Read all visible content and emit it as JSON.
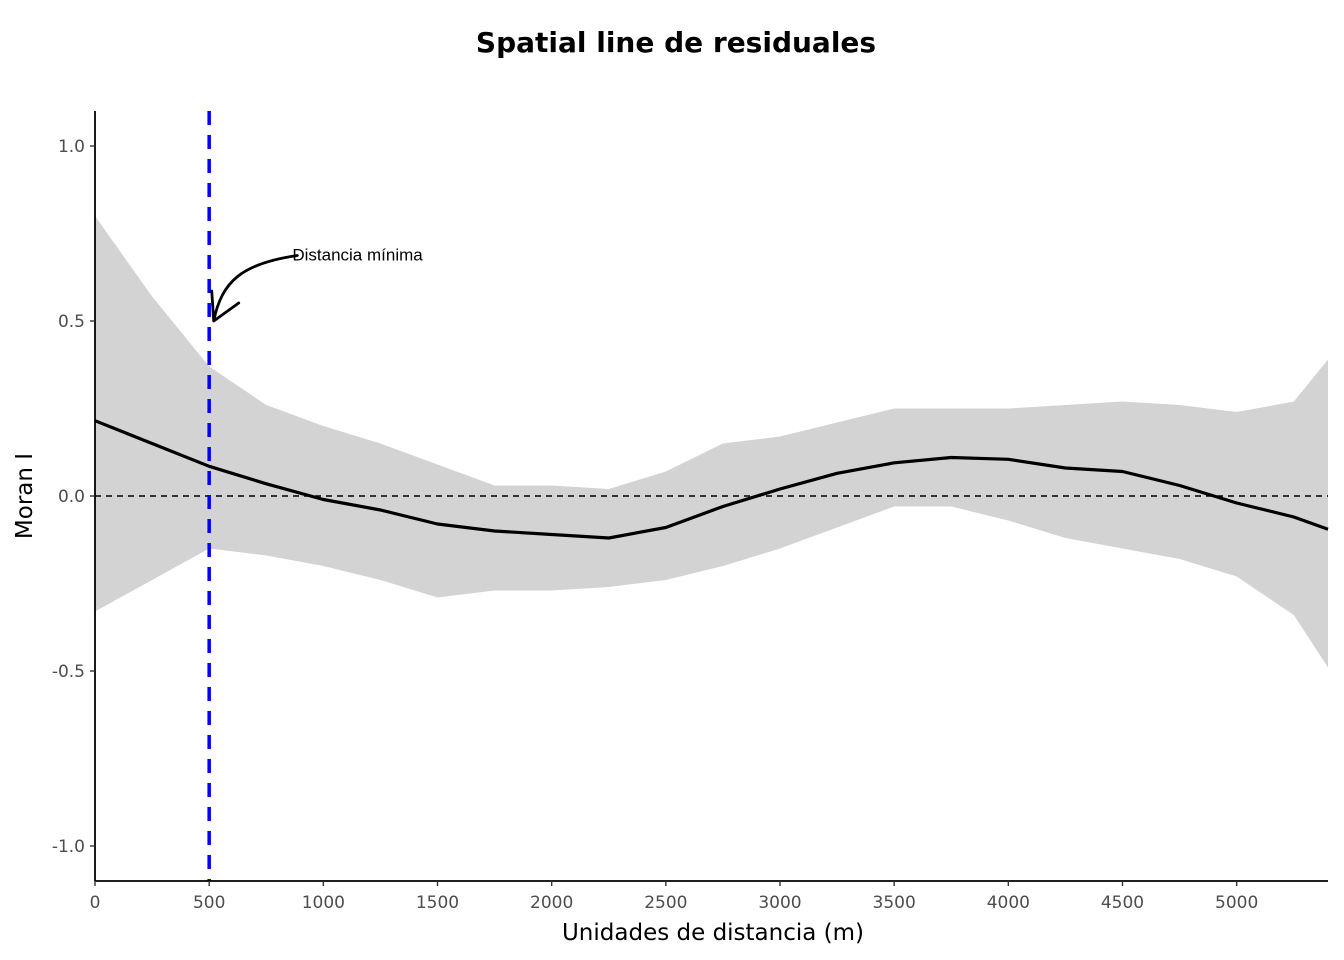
{
  "chart_data": {
    "type": "line",
    "title": "Spatial line de residuales",
    "xlabel": "Unidades de distancia (m)",
    "ylabel": "Moran I",
    "xlim": [
      0,
      5400
    ],
    "ylim": [
      -1.1,
      1.1
    ],
    "x_ticks": [
      0,
      500,
      1000,
      1500,
      2000,
      2500,
      3000,
      3500,
      4000,
      4500,
      5000
    ],
    "y_ticks": [
      -1.0,
      -0.5,
      0.0,
      0.5,
      1.0
    ],
    "y_tick_labels": [
      "-1.0",
      "-0.5",
      "0.0",
      "0.5",
      "1.0"
    ],
    "grid": false,
    "legend": "none",
    "series": [
      {
        "x": [
          0,
          250,
          500,
          750,
          1000,
          1250,
          1500,
          1750,
          2000,
          2250,
          2500,
          2750,
          3000,
          3250,
          3500,
          3750,
          4000,
          4250,
          4500,
          4750,
          5000,
          5250,
          5400
        ],
        "values": [
          0.215,
          0.15,
          0.085,
          0.035,
          -0.01,
          -0.04,
          -0.08,
          -0.1,
          -0.11,
          -0.12,
          -0.09,
          -0.03,
          0.02,
          0.065,
          0.095,
          0.11,
          0.105,
          0.08,
          0.07,
          0.03,
          -0.02,
          -0.06,
          -0.095
        ],
        "ci_upper": [
          0.8,
          0.57,
          0.37,
          0.26,
          0.2,
          0.15,
          0.09,
          0.03,
          0.03,
          0.02,
          0.07,
          0.15,
          0.17,
          0.21,
          0.25,
          0.25,
          0.25,
          0.26,
          0.27,
          0.26,
          0.24,
          0.27,
          0.39
        ],
        "ci_lower": [
          -0.33,
          -0.24,
          -0.15,
          -0.17,
          -0.2,
          -0.24,
          -0.29,
          -0.27,
          -0.27,
          -0.26,
          -0.24,
          -0.2,
          -0.15,
          -0.09,
          -0.03,
          -0.03,
          -0.07,
          -0.12,
          -0.15,
          -0.18,
          -0.23,
          -0.34,
          -0.49
        ]
      }
    ],
    "reference_lines": {
      "horizontal_y": 0.0,
      "vertical_x": 500
    },
    "annotation": {
      "text": "Distancia mínima",
      "x": 930,
      "y": 0.69,
      "arrow_to_x": 520,
      "arrow_to_y": 0.5
    },
    "colors": {
      "ribbon": "#d3d3d3",
      "line": "#000000",
      "vline": "#0000ff",
      "hline": "#000000"
    }
  }
}
